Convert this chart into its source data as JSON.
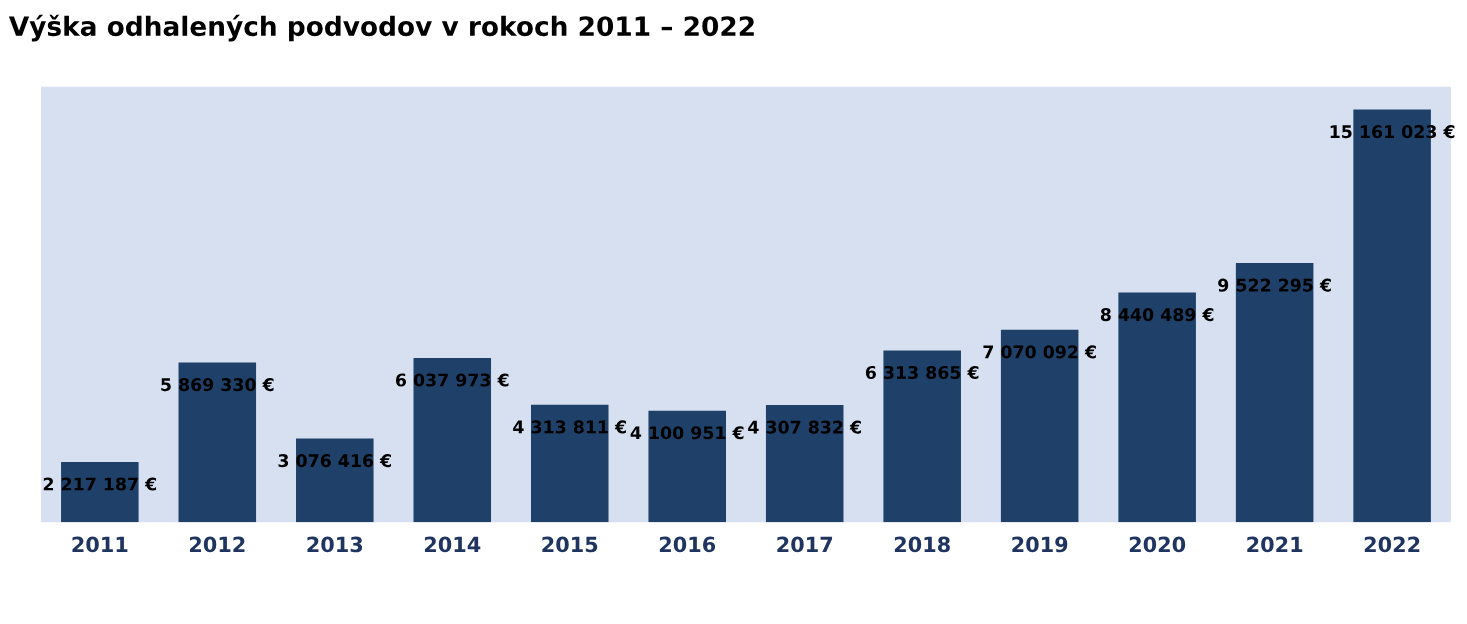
{
  "chart_data": {
    "type": "bar",
    "title": "Výška odhalených podvodov v rokoch 2011 – 2022",
    "categories": [
      "2011",
      "2012",
      "2013",
      "2014",
      "2015",
      "2016",
      "2017",
      "2018",
      "2019",
      "2020",
      "2021",
      "2022"
    ],
    "values": [
      2217187,
      5869330,
      3076416,
      6037973,
      4313811,
      4100951,
      4307832,
      6313865,
      7070092,
      8440489,
      9522295,
      15161023
    ],
    "value_labels": [
      "2 217 187 €",
      "5 869 330 €",
      "3 076 416 €",
      "6 037 973 €",
      "4 313 811 €",
      "4 100 951 €",
      "4 307 832 €",
      "6 313 865 €",
      "7 070 092 €",
      "8 440 489 €",
      "9 522 295 €",
      "15 161 023 €"
    ],
    "color": "#1f4068",
    "ylim": [
      0,
      16000000
    ],
    "tick_labels": "x",
    "grid": false,
    "legend": false
  }
}
